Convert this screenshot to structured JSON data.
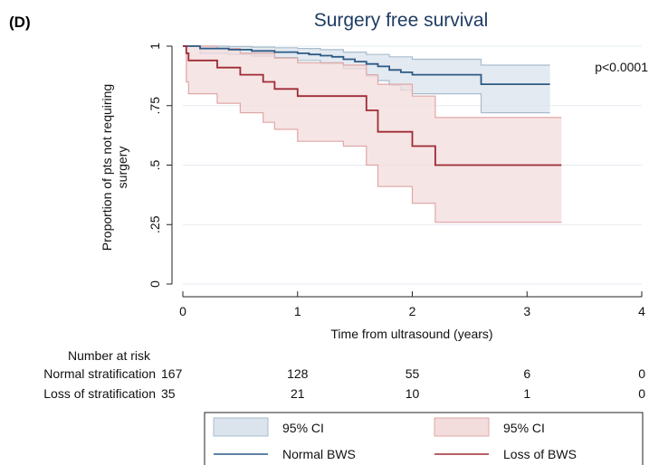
{
  "chart_data": {
    "type": "line",
    "panel_label": "(D)",
    "title": "Surgery free survival",
    "xlabel": "Time from ultrasound (years)",
    "ylabel_lines": [
      "Proportion of pts not requiring",
      "surgery"
    ],
    "xlim": [
      0,
      4
    ],
    "ylim": [
      0,
      1
    ],
    "x_ticks": [
      {
        "value": 0,
        "label": "0"
      },
      {
        "value": 1,
        "label": "1"
      },
      {
        "value": 2,
        "label": "2"
      },
      {
        "value": 3,
        "label": "3"
      },
      {
        "value": 4,
        "label": "4"
      }
    ],
    "y_ticks": [
      {
        "value": 0,
        "label": "0"
      },
      {
        "value": 0.25,
        "label": ".25"
      },
      {
        "value": 0.5,
        "label": ".5"
      },
      {
        "value": 0.75,
        "label": ".75"
      },
      {
        "value": 1,
        "label": "1"
      }
    ],
    "grid": "horizontal",
    "annotation": "p<0.0001",
    "series": [
      {
        "name": "Normal BWS",
        "color": "#2c5a85",
        "ci_fill": "#dbe3ec",
        "ci_edge": "#a8bccd",
        "step": [
          [
            0,
            1
          ],
          [
            0.15,
            0.99
          ],
          [
            0.4,
            0.985
          ],
          [
            0.6,
            0.98
          ],
          [
            0.8,
            0.975
          ],
          [
            1.0,
            0.97
          ],
          [
            1.1,
            0.965
          ],
          [
            1.2,
            0.96
          ],
          [
            1.3,
            0.955
          ],
          [
            1.4,
            0.945
          ],
          [
            1.5,
            0.935
          ],
          [
            1.6,
            0.925
          ],
          [
            1.7,
            0.915
          ],
          [
            1.8,
            0.9
          ],
          [
            1.9,
            0.89
          ],
          [
            2.0,
            0.88
          ],
          [
            2.6,
            0.84
          ],
          [
            3.2,
            0.84
          ]
        ],
        "ci_upper": [
          [
            0,
            1
          ],
          [
            0.15,
            1
          ],
          [
            0.4,
            0.998
          ],
          [
            0.6,
            0.996
          ],
          [
            0.8,
            0.993
          ],
          [
            1.0,
            0.99
          ],
          [
            1.2,
            0.985
          ],
          [
            1.4,
            0.975
          ],
          [
            1.6,
            0.965
          ],
          [
            1.8,
            0.955
          ],
          [
            2.0,
            0.945
          ],
          [
            2.6,
            0.92
          ],
          [
            3.2,
            0.92
          ]
        ],
        "ci_lower": [
          [
            0,
            1
          ],
          [
            0.15,
            0.97
          ],
          [
            0.4,
            0.965
          ],
          [
            0.6,
            0.958
          ],
          [
            0.8,
            0.952
          ],
          [
            1.0,
            0.94
          ],
          [
            1.2,
            0.925
          ],
          [
            1.4,
            0.905
          ],
          [
            1.6,
            0.875
          ],
          [
            1.7,
            0.855
          ],
          [
            1.8,
            0.835
          ],
          [
            1.9,
            0.815
          ],
          [
            2.0,
            0.8
          ],
          [
            2.6,
            0.72
          ],
          [
            3.2,
            0.72
          ]
        ]
      },
      {
        "name": "Loss of BWS",
        "color": "#9e2b35",
        "ci_fill": "#f3dcdc",
        "ci_edge": "#e0a7a7",
        "step": [
          [
            0,
            1
          ],
          [
            0.03,
            0.97
          ],
          [
            0.05,
            0.94
          ],
          [
            0.3,
            0.91
          ],
          [
            0.5,
            0.88
          ],
          [
            0.7,
            0.85
          ],
          [
            0.8,
            0.82
          ],
          [
            1.0,
            0.79
          ],
          [
            1.4,
            0.79
          ],
          [
            1.6,
            0.73
          ],
          [
            1.7,
            0.64
          ],
          [
            2.0,
            0.58
          ],
          [
            2.2,
            0.5
          ],
          [
            3.3,
            0.5
          ]
        ],
        "ci_upper": [
          [
            0,
            1
          ],
          [
            0.05,
            1
          ],
          [
            0.3,
            0.99
          ],
          [
            0.5,
            0.97
          ],
          [
            0.8,
            0.95
          ],
          [
            1.0,
            0.93
          ],
          [
            1.4,
            0.92
          ],
          [
            1.6,
            0.88
          ],
          [
            1.7,
            0.84
          ],
          [
            2.0,
            0.79
          ],
          [
            2.2,
            0.7
          ],
          [
            3.3,
            0.7
          ]
        ],
        "ci_lower": [
          [
            0,
            1
          ],
          [
            0.03,
            0.85
          ],
          [
            0.05,
            0.8
          ],
          [
            0.3,
            0.76
          ],
          [
            0.5,
            0.72
          ],
          [
            0.7,
            0.68
          ],
          [
            0.8,
            0.65
          ],
          [
            1.0,
            0.6
          ],
          [
            1.4,
            0.58
          ],
          [
            1.6,
            0.5
          ],
          [
            1.7,
            0.41
          ],
          [
            2.0,
            0.34
          ],
          [
            2.2,
            0.26
          ],
          [
            3.3,
            0.26
          ]
        ]
      }
    ],
    "risk_table": {
      "title": "Number at risk",
      "rows": [
        {
          "label": "Normal stratification",
          "values": [
            "167",
            "128",
            "55",
            "6",
            "0"
          ]
        },
        {
          "label": "Loss of stratification",
          "values": [
            "35",
            "21",
            "10",
            "1",
            "0"
          ]
        }
      ]
    },
    "legend": {
      "position": "bottom",
      "items": [
        {
          "kind": "ci",
          "label": "95% CI",
          "series": 0
        },
        {
          "kind": "ci",
          "label": "95% CI",
          "series": 1
        },
        {
          "kind": "line",
          "label": "Normal BWS",
          "series": 0
        },
        {
          "kind": "line",
          "label": "Loss of BWS",
          "series": 1
        }
      ]
    }
  }
}
